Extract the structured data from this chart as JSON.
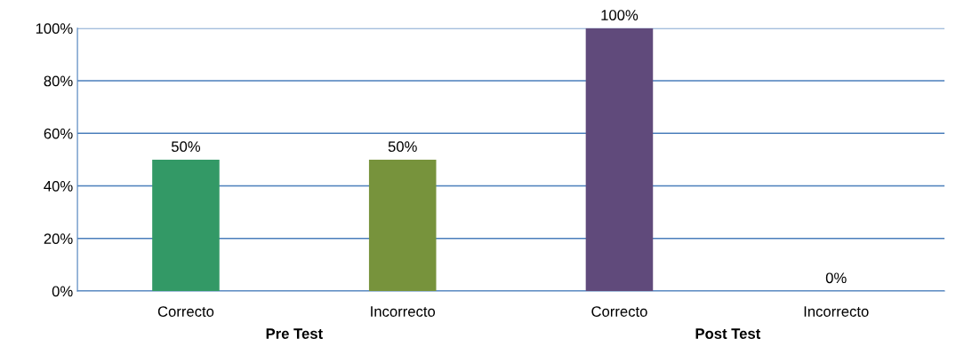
{
  "chart_data": {
    "type": "bar",
    "categories": [
      "Correcto",
      "Incorrecto",
      "Correcto",
      "Incorrecto"
    ],
    "values": [
      50,
      50,
      100,
      0
    ],
    "colors": [
      "#339966",
      "#77933c",
      "#604a7b",
      "#4bacc6"
    ],
    "value_labels": [
      "50%",
      "50%",
      "100%",
      "0%"
    ],
    "ylim": [
      0,
      100
    ],
    "yticks": [
      {
        "value": 0,
        "label": "0%"
      },
      {
        "value": 20,
        "label": "20%"
      },
      {
        "value": 40,
        "label": "40%"
      },
      {
        "value": 60,
        "label": "60%"
      },
      {
        "value": 80,
        "label": "80%"
      },
      {
        "value": 100,
        "label": "100%"
      }
    ],
    "grid": "y",
    "legend": false,
    "annotations": [
      "Pre Test",
      "Post Test"
    ]
  }
}
